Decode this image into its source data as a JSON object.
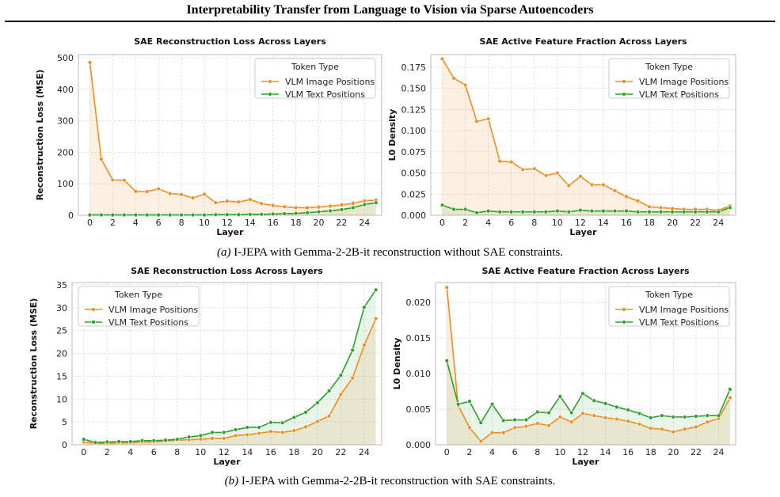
{
  "page": {
    "title": "Interpretability Transfer from Language to Vision via Sparse Autoencoders",
    "caption_a_label": "(a)",
    "caption_a_text": " I-JEPA with Gemma-2-2B-it reconstruction without SAE constraints.",
    "caption_b_label": "(b)",
    "caption_b_text": " I-JEPA with Gemma-2-2B-it reconstruction with SAE constraints."
  },
  "colors": {
    "image": "#f28c1f",
    "text": "#2ca02c",
    "grid": "#dcdcdc",
    "frame": "#bbbbbb"
  },
  "chart_data": [
    {
      "type": "line",
      "title": "SAE Reconstruction Loss Across Layers",
      "xlabel": "Layer",
      "ylabel": "Reconstruction Loss (MSE)",
      "legend_title": "Token Type",
      "legend_position": "top-right",
      "grid": true,
      "xlim": [
        -1,
        25.5
      ],
      "ylim": [
        0,
        510
      ],
      "xticks": [
        0,
        2,
        4,
        6,
        8,
        10,
        12,
        14,
        16,
        18,
        20,
        22,
        24
      ],
      "yticks": [
        0,
        100,
        200,
        300,
        400,
        500
      ],
      "ytick_labels": [
        "0",
        "100",
        "200",
        "300",
        "400",
        "500"
      ],
      "x": [
        0,
        1,
        2,
        3,
        4,
        5,
        6,
        7,
        8,
        9,
        10,
        11,
        12,
        13,
        14,
        15,
        16,
        17,
        18,
        19,
        20,
        21,
        22,
        23,
        24,
        25
      ],
      "series": [
        {
          "name": "VLM Image Positions",
          "values": [
            485,
            178,
            112,
            111,
            76,
            75,
            84,
            69,
            66,
            55,
            67,
            40,
            45,
            42,
            50,
            37,
            31,
            27,
            24,
            24,
            26,
            29,
            33,
            38,
            46,
            48
          ]
        },
        {
          "name": "VLM Text Positions",
          "values": [
            1,
            1,
            1,
            1,
            1,
            1,
            1,
            1,
            1,
            1,
            1,
            2,
            2,
            2,
            3,
            3,
            4,
            5,
            6,
            8,
            11,
            14,
            18,
            24,
            34,
            40
          ]
        }
      ]
    },
    {
      "type": "line",
      "title": "SAE Active Feature Fraction Across Layers",
      "xlabel": "Layer",
      "ylabel": "L0 Density",
      "legend_title": "Token Type",
      "legend_position": "top-right",
      "grid": true,
      "xlim": [
        -1,
        25.5
      ],
      "ylim": [
        0,
        0.19
      ],
      "xticks": [
        0,
        2,
        4,
        6,
        8,
        10,
        12,
        14,
        16,
        18,
        20,
        22,
        24
      ],
      "yticks": [
        0,
        0.025,
        0.05,
        0.075,
        0.1,
        0.125,
        0.15,
        0.175
      ],
      "ytick_labels": [
        "0.000",
        "0.025",
        "0.050",
        "0.075",
        "0.100",
        "0.125",
        "0.150",
        "0.175"
      ],
      "x": [
        0,
        1,
        2,
        3,
        4,
        5,
        6,
        7,
        8,
        9,
        10,
        11,
        12,
        13,
        14,
        15,
        16,
        17,
        18,
        19,
        20,
        21,
        22,
        23,
        24,
        25
      ],
      "series": [
        {
          "name": "VLM Image Positions",
          "values": [
            0.185,
            0.162,
            0.154,
            0.111,
            0.114,
            0.064,
            0.063,
            0.054,
            0.055,
            0.047,
            0.05,
            0.035,
            0.046,
            0.036,
            0.036,
            0.029,
            0.022,
            0.017,
            0.01,
            0.009,
            0.008,
            0.007,
            0.007,
            0.007,
            0.006,
            0.011
          ]
        },
        {
          "name": "VLM Text Positions",
          "values": [
            0.012,
            0.007,
            0.007,
            0.003,
            0.005,
            0.004,
            0.004,
            0.004,
            0.004,
            0.004,
            0.005,
            0.004,
            0.006,
            0.005,
            0.005,
            0.005,
            0.005,
            0.004,
            0.004,
            0.004,
            0.004,
            0.004,
            0.004,
            0.004,
            0.004,
            0.009
          ]
        }
      ]
    },
    {
      "type": "line",
      "title": "SAE Reconstruction Loss Across Layers",
      "xlabel": "Layer",
      "ylabel": "Reconstruction Loss (MSE)",
      "legend_title": "Token Type",
      "legend_position": "top-left",
      "grid": true,
      "xlim": [
        -1,
        25.5
      ],
      "ylim": [
        0,
        35.5
      ],
      "xticks": [
        0,
        2,
        4,
        6,
        8,
        10,
        12,
        14,
        16,
        18,
        20,
        22,
        24
      ],
      "yticks": [
        0,
        5,
        10,
        15,
        20,
        25,
        30,
        35
      ],
      "ytick_labels": [
        "0",
        "5",
        "10",
        "15",
        "20",
        "25",
        "30",
        "35"
      ],
      "x": [
        0,
        1,
        2,
        3,
        4,
        5,
        6,
        7,
        8,
        9,
        10,
        11,
        12,
        13,
        14,
        15,
        16,
        17,
        18,
        19,
        20,
        21,
        22,
        23,
        24,
        25
      ],
      "series": [
        {
          "name": "VLM Image Positions",
          "values": [
            0.6,
            0.3,
            0.3,
            0.4,
            0.4,
            0.6,
            0.6,
            0.8,
            1.0,
            1.1,
            1.2,
            1.4,
            1.4,
            2.0,
            2.2,
            2.5,
            2.9,
            2.7,
            3.1,
            3.9,
            5.1,
            6.3,
            11.0,
            14.6,
            21.8,
            27.6
          ]
        },
        {
          "name": "VLM Text Positions",
          "values": [
            1.2,
            0.5,
            0.6,
            0.7,
            0.7,
            0.9,
            0.9,
            1.0,
            1.2,
            1.7,
            2.0,
            2.7,
            2.7,
            3.3,
            3.8,
            3.8,
            4.9,
            4.8,
            6.0,
            7.1,
            9.2,
            11.8,
            15.2,
            20.7,
            30.1,
            33.9
          ]
        }
      ]
    },
    {
      "type": "line",
      "title": "SAE Active Feature Fraction Across Layers",
      "xlabel": "Layer",
      "ylabel": "L0 Density",
      "legend_title": "Token Type",
      "legend_position": "top-right",
      "grid": true,
      "xlim": [
        -1,
        25.5
      ],
      "ylim": [
        0,
        0.0228
      ],
      "xticks": [
        0,
        2,
        4,
        6,
        8,
        10,
        12,
        14,
        16,
        18,
        20,
        22,
        24
      ],
      "yticks": [
        0,
        0.005,
        0.01,
        0.015,
        0.02
      ],
      "ytick_labels": [
        "0.000",
        "0.005",
        "0.010",
        "0.015",
        "0.020"
      ],
      "x": [
        0,
        1,
        2,
        3,
        4,
        5,
        6,
        7,
        8,
        9,
        10,
        11,
        12,
        13,
        14,
        15,
        16,
        17,
        18,
        19,
        20,
        21,
        22,
        23,
        24,
        25
      ],
      "series": [
        {
          "name": "VLM Image Positions",
          "values": [
            0.0221,
            0.0055,
            0.0024,
            0.0005,
            0.0017,
            0.0017,
            0.0024,
            0.0026,
            0.003,
            0.0027,
            0.0039,
            0.0032,
            0.0044,
            0.0041,
            0.0038,
            0.0036,
            0.0033,
            0.0029,
            0.0023,
            0.0022,
            0.0018,
            0.0022,
            0.0025,
            0.0032,
            0.0037,
            0.0066
          ]
        },
        {
          "name": "VLM Text Positions",
          "values": [
            0.0118,
            0.0057,
            0.0061,
            0.0031,
            0.0057,
            0.0034,
            0.0035,
            0.0035,
            0.0046,
            0.0045,
            0.0068,
            0.0045,
            0.0072,
            0.0062,
            0.0058,
            0.0053,
            0.0049,
            0.0044,
            0.0038,
            0.0041,
            0.0039,
            0.0039,
            0.004,
            0.0041,
            0.0041,
            0.0078
          ]
        }
      ]
    }
  ]
}
